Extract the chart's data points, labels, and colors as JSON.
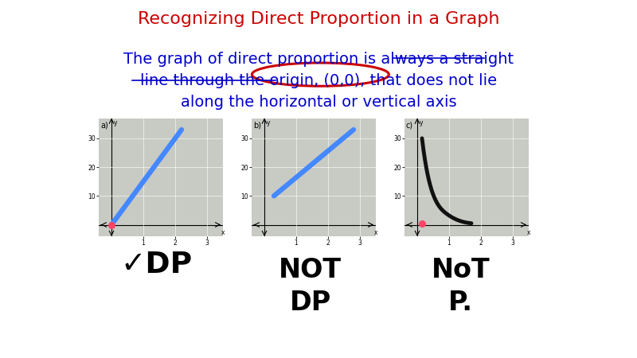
{
  "title": "Recognizing Direct Proportion in a Graph",
  "title_color": "#cc0000",
  "title_fontsize": 16,
  "body_lines": [
    "The graph of direct proportion is always a straight",
    "line through the origin, (0,0), that does not lie",
    "along the horizontal or vertical axis"
  ],
  "body_color": "#0000cc",
  "body_fontsize": 14,
  "label_a": "a)",
  "label_b": "b)",
  "label_c": "c)",
  "blue_color": "#4488ff",
  "black_color": "#111111",
  "red_dot_color": "#ff4466",
  "graph_face": "#c8cac4",
  "graph_grid": "#a0a098",
  "graph_a_line": [
    [
      0.0,
      0.0
    ],
    [
      2.2,
      33.0
    ]
  ],
  "graph_b_line": [
    [
      0.3,
      10.0
    ],
    [
      2.8,
      33.0
    ]
  ],
  "graph_c_curve_x": [
    0.15,
    0.25,
    0.4,
    0.6,
    0.9,
    1.3,
    1.7
  ],
  "graph_c_curve_y": [
    30.0,
    22.0,
    14.0,
    8.0,
    4.0,
    1.5,
    0.5
  ],
  "graph_yticks": [
    10,
    20,
    30
  ],
  "graph_xticks": [
    1,
    2,
    3
  ],
  "graph_xlim": [
    -0.4,
    3.5
  ],
  "graph_ylim": [
    -4,
    37
  ],
  "annot_a": "✓DP",
  "annot_b_line1": "NOT",
  "annot_b_line2": "DP",
  "annot_c_line1": "NoT",
  "annot_c_line2": "P."
}
